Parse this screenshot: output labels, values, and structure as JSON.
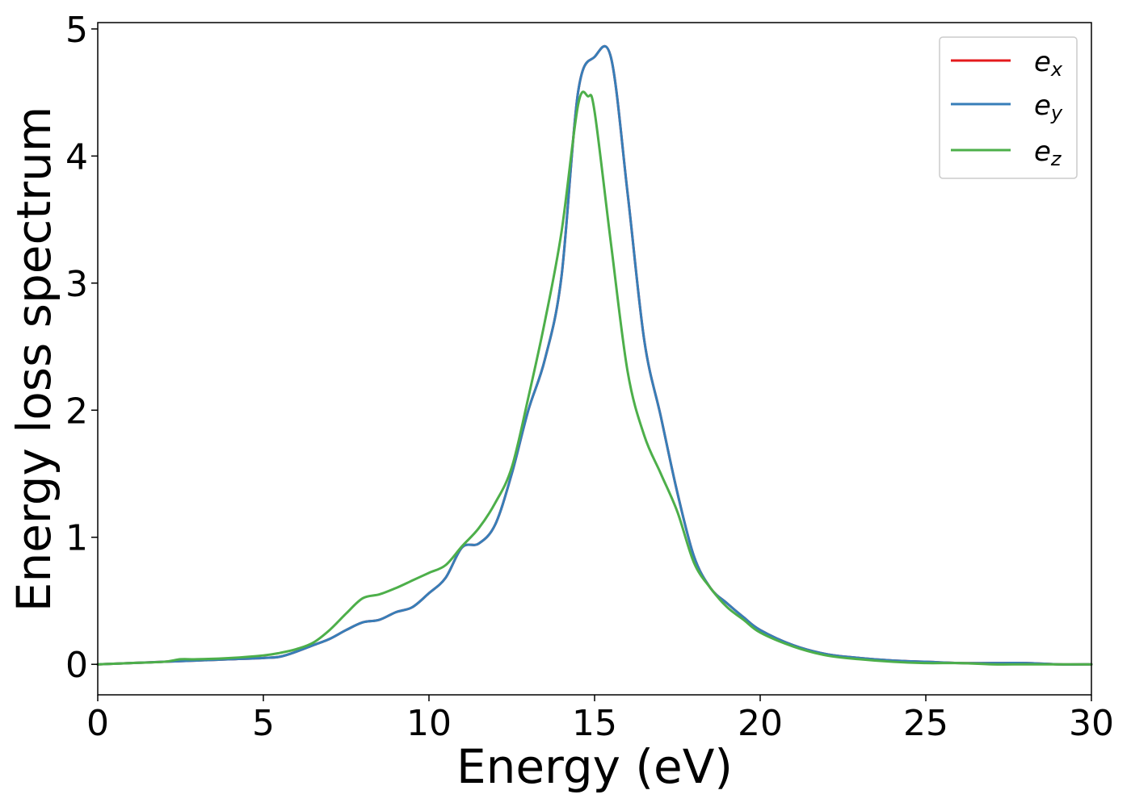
{
  "chart_data": {
    "type": "line",
    "xlabel": "Energy (eV)",
    "ylabel": "Energy loss spectrum",
    "xlim": [
      0,
      30
    ],
    "ylim": [
      -0.24,
      5.05
    ],
    "xticks": [
      0,
      5,
      10,
      15,
      20,
      25,
      30
    ],
    "yticks": [
      0,
      1,
      2,
      3,
      4,
      5
    ],
    "xtick_labels": [
      "0",
      "5",
      "10",
      "15",
      "20",
      "25",
      "30"
    ],
    "ytick_labels": [
      "0",
      "1",
      "2",
      "3",
      "4",
      "5"
    ],
    "grid": false,
    "legend_position": "top-right",
    "series": [
      {
        "name": "e_x",
        "label_main": "e",
        "label_sub": "x",
        "color": "#e41a1c",
        "x": [
          0,
          1,
          2,
          3,
          4,
          5,
          5.5,
          6,
          6.5,
          7,
          7.5,
          8,
          8.5,
          9,
          9.5,
          10,
          10.5,
          11,
          11.5,
          12,
          12.5,
          13,
          13.5,
          14,
          14.5,
          15,
          15.5,
          16,
          16.5,
          17,
          17.5,
          18,
          18.5,
          19,
          19.5,
          20,
          21,
          22,
          23,
          24,
          25,
          26,
          27,
          28,
          29,
          30
        ],
        "y": [
          0.0,
          0.01,
          0.02,
          0.03,
          0.04,
          0.05,
          0.06,
          0.1,
          0.15,
          0.2,
          0.27,
          0.33,
          0.35,
          0.41,
          0.45,
          0.56,
          0.68,
          0.92,
          0.95,
          1.1,
          1.5,
          2.0,
          2.4,
          3.05,
          4.5,
          4.78,
          4.77,
          3.7,
          2.55,
          1.95,
          1.35,
          0.85,
          0.6,
          0.48,
          0.37,
          0.27,
          0.15,
          0.08,
          0.05,
          0.03,
          0.02,
          0.01,
          0.01,
          0.01,
          0.0,
          0.0
        ]
      },
      {
        "name": "e_y",
        "label_main": "e",
        "label_sub": "y",
        "color": "#377eb8",
        "x": [
          0,
          1,
          2,
          3,
          4,
          5,
          5.5,
          6,
          6.5,
          7,
          7.5,
          8,
          8.5,
          9,
          9.5,
          10,
          10.5,
          11,
          11.5,
          12,
          12.5,
          13,
          13.5,
          14,
          14.5,
          15,
          15.5,
          16,
          16.5,
          17,
          17.5,
          18,
          18.5,
          19,
          19.5,
          20,
          21,
          22,
          23,
          24,
          25,
          26,
          27,
          28,
          29,
          30
        ],
        "y": [
          0.0,
          0.01,
          0.02,
          0.03,
          0.04,
          0.05,
          0.06,
          0.1,
          0.15,
          0.2,
          0.27,
          0.33,
          0.35,
          0.41,
          0.45,
          0.56,
          0.68,
          0.92,
          0.95,
          1.1,
          1.5,
          2.0,
          2.4,
          3.05,
          4.5,
          4.78,
          4.77,
          3.7,
          2.55,
          1.95,
          1.35,
          0.85,
          0.6,
          0.48,
          0.37,
          0.27,
          0.15,
          0.08,
          0.05,
          0.03,
          0.02,
          0.01,
          0.01,
          0.01,
          0.0,
          0.0
        ]
      },
      {
        "name": "e_z",
        "label_main": "e",
        "label_sub": "z",
        "color": "#4daf4a",
        "x": [
          0,
          1,
          2,
          2.5,
          3,
          4,
          5,
          5.5,
          6,
          6.5,
          7,
          7.5,
          8,
          8.5,
          9,
          9.5,
          10,
          10.5,
          11,
          11.5,
          12,
          12.5,
          13,
          13.5,
          14,
          14.5,
          14.8,
          15,
          15.5,
          16,
          16.5,
          17,
          17.5,
          18,
          18.5,
          19,
          19.5,
          20,
          21,
          22,
          23,
          24,
          25,
          26,
          27,
          28,
          29,
          30
        ],
        "y": [
          0.0,
          0.01,
          0.02,
          0.04,
          0.04,
          0.05,
          0.07,
          0.09,
          0.12,
          0.17,
          0.27,
          0.4,
          0.52,
          0.55,
          0.6,
          0.66,
          0.72,
          0.78,
          0.93,
          1.07,
          1.27,
          1.55,
          2.1,
          2.7,
          3.4,
          4.4,
          4.47,
          4.35,
          3.3,
          2.3,
          1.8,
          1.5,
          1.2,
          0.8,
          0.6,
          0.45,
          0.35,
          0.25,
          0.14,
          0.07,
          0.04,
          0.02,
          0.01,
          0.01,
          0.0,
          0.0,
          0.0,
          0.0
        ]
      }
    ]
  }
}
